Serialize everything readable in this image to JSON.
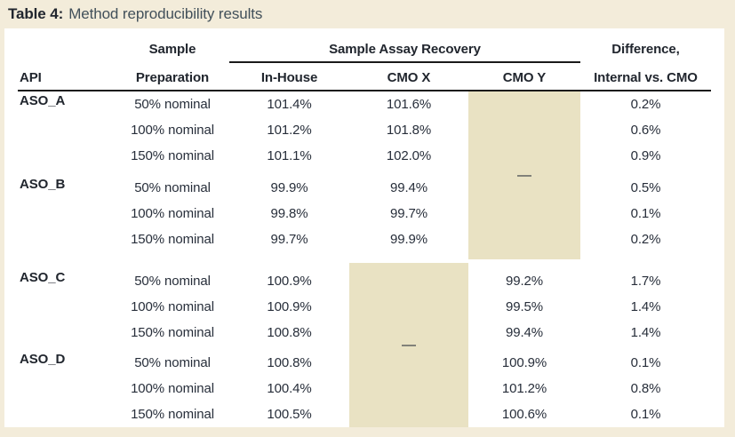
{
  "title": {
    "label": "Table 4:",
    "text": "Method reproducibility results"
  },
  "table": {
    "column_headers": {
      "api": "API",
      "sample_preparation_line1": "Sample",
      "sample_preparation_line2": "Preparation",
      "assay_group": "Sample Assay Recovery",
      "in_house": "In-House",
      "cmo_x": "CMO X",
      "cmo_y": "CMO Y",
      "difference_line1": "Difference,",
      "difference_line2": "Internal vs. CMO"
    },
    "no_data_symbol": "—",
    "groups": [
      {
        "api": "ASO_A",
        "rows": [
          {
            "prep": "50% nominal",
            "in_house": "101.4%",
            "cmo_x": "101.6%",
            "diff": "0.2%"
          },
          {
            "prep": "100% nominal",
            "in_house": "101.2%",
            "cmo_x": "101.8%",
            "diff": "0.6%"
          },
          {
            "prep": "150% nominal",
            "in_house": "101.1%",
            "cmo_x": "102.0%",
            "diff": "0.9%"
          }
        ]
      },
      {
        "api": "ASO_B",
        "rows": [
          {
            "prep": "50% nominal",
            "in_house": "99.9%",
            "cmo_x": "99.4%",
            "diff": "0.5%"
          },
          {
            "prep": "100% nominal",
            "in_house": "99.8%",
            "cmo_x": "99.7%",
            "diff": "0.1%"
          },
          {
            "prep": "150% nominal",
            "in_house": "99.7%",
            "cmo_x": "99.9%",
            "diff": "0.2%"
          }
        ]
      },
      {
        "api": "ASO_C",
        "rows": [
          {
            "prep": "50% nominal",
            "in_house": "100.9%",
            "cmo_y": "99.2%",
            "diff": "1.7%"
          },
          {
            "prep": "100% nominal",
            "in_house": "100.9%",
            "cmo_y": "99.5%",
            "diff": "1.4%"
          },
          {
            "prep": "150% nominal",
            "in_house": "100.8%",
            "cmo_y": "99.4%",
            "diff": "1.4%"
          }
        ]
      },
      {
        "api": "ASO_D",
        "rows": [
          {
            "prep": "50% nominal",
            "in_house": "100.8%",
            "cmo_y": "100.9%",
            "diff": "0.1%"
          },
          {
            "prep": "100% nominal",
            "in_house": "100.4%",
            "cmo_y": "101.2%",
            "diff": "0.8%"
          },
          {
            "prep": "150% nominal",
            "in_house": "100.5%",
            "cmo_y": "100.6%",
            "diff": "0.1%"
          }
        ]
      }
    ],
    "colors": {
      "page_background": "#f3ecda",
      "shaded_cell": "#e9e2c3",
      "text": "#272e3a",
      "rule": "#1a1a1a"
    }
  }
}
